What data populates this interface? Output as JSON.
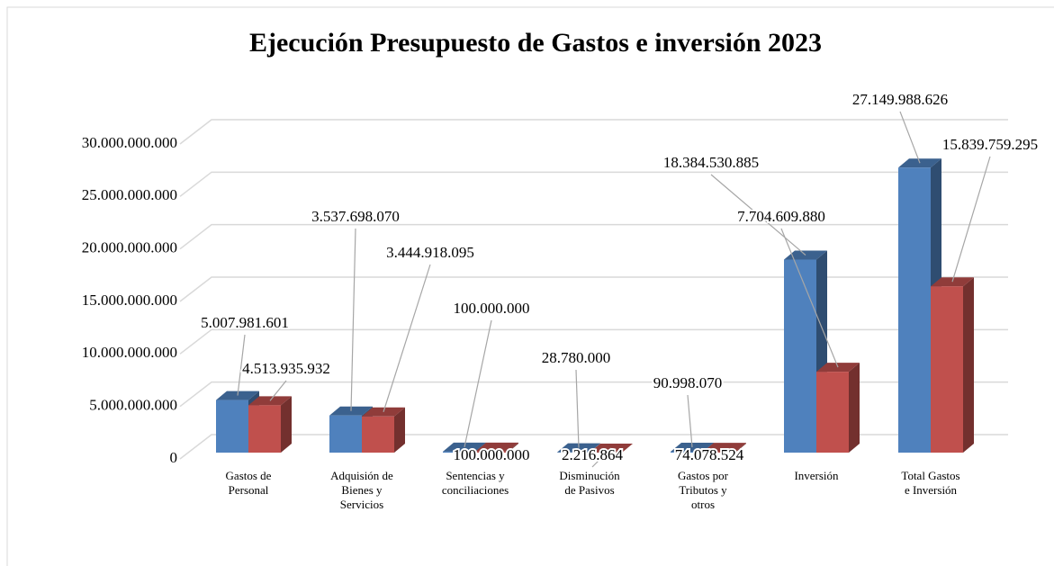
{
  "chart_data": {
    "type": "bar3d",
    "title": "Ejecución Presupuesto de Gastos e inversión 2023",
    "categories": [
      "Gastos de Personal",
      "Adquisión de Bienes y Servicios",
      "Sentencias y conciliaciones",
      "Disminución de Pasivos",
      "Gastos por Tributos y otros",
      "Inversión",
      "Total Gastos e Inversión"
    ],
    "series": [
      {
        "color": "#4f81bd",
        "values": [
          5007981601,
          3537698070,
          100000000,
          28780000,
          90998070,
          18384530885,
          27149988626
        ],
        "value_labels": [
          "5.007.981.601",
          "3.537.698.070",
          "100.000.000",
          "28.780.000",
          "90.998.070",
          "18.384.530.885",
          "27.149.988.626"
        ]
      },
      {
        "color": "#c0504d",
        "values": [
          4513935932,
          3444918095,
          100000000,
          2216864,
          74078524,
          7704609880,
          15839759295
        ],
        "value_labels": [
          "4.513.935.932",
          "3.444.918.095",
          "100.000.000",
          "2.216.864",
          "74.078.524",
          "7.704.609.880",
          "15.839.759.295"
        ]
      }
    ],
    "ylim": [
      0,
      30000000000
    ],
    "yticks": [
      0,
      {
        "value": 5000000000,
        "label": "5.000.000.000"
      },
      {
        "value": 10000000000,
        "label": "10.000.000.000"
      },
      {
        "value": 15000000000,
        "label": "15.000.000.000"
      },
      {
        "value": 20000000000,
        "label": "20.000.000.000"
      },
      {
        "value": 25000000000,
        "label": "25.000.000.000"
      },
      {
        "value": 30000000000,
        "label": "30.000.000.000"
      }
    ],
    "grid": true
  }
}
